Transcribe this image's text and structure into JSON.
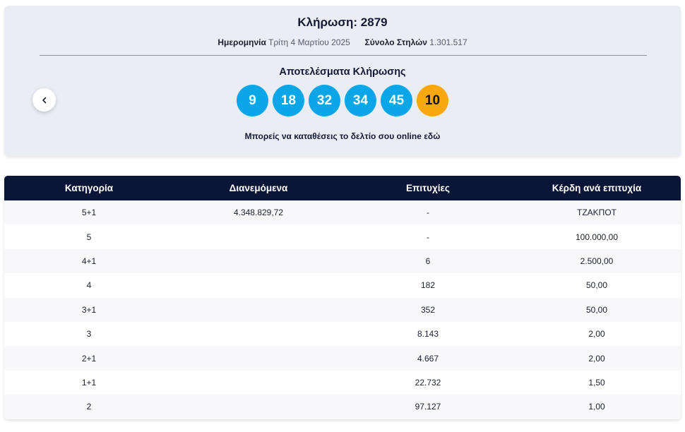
{
  "draw": {
    "title": "Κλήρωση: 2879",
    "date_label": "Ημερομηνία",
    "date_value": "Τρίτη 4 Μαρτίου 2025",
    "columns_label": "Σύνολο Στηλών",
    "columns_value": "1.301.517",
    "results_title": "Αποτελέσματα Κλήρωσης",
    "numbers": [
      "9",
      "18",
      "32",
      "34",
      "45"
    ],
    "joker": "10",
    "online_note": "Μπορείς να καταθέσεις το δελτίο σου online εδώ",
    "colors": {
      "main_ball": "#0aa6e8",
      "joker_ball": "#f8a70f",
      "header_bg": "#0b1538"
    }
  },
  "table": {
    "headers": [
      "Κατηγορία",
      "Διανεμόμενα",
      "Επιτυχίες",
      "Κέρδη ανά επιτυχία"
    ],
    "rows": [
      [
        "5+1",
        "4.348.829,72",
        "-",
        "ΤΖΑΚΠΟΤ"
      ],
      [
        "5",
        "",
        "-",
        "100.000,00"
      ],
      [
        "4+1",
        "",
        "6",
        "2.500,00"
      ],
      [
        "4",
        "",
        "182",
        "50,00"
      ],
      [
        "3+1",
        "",
        "352",
        "50,00"
      ],
      [
        "3",
        "",
        "8.143",
        "2,00"
      ],
      [
        "2+1",
        "",
        "4.667",
        "2,00"
      ],
      [
        "1+1",
        "",
        "22.732",
        "1,50"
      ],
      [
        "2",
        "",
        "97.127",
        "1,00"
      ]
    ]
  }
}
